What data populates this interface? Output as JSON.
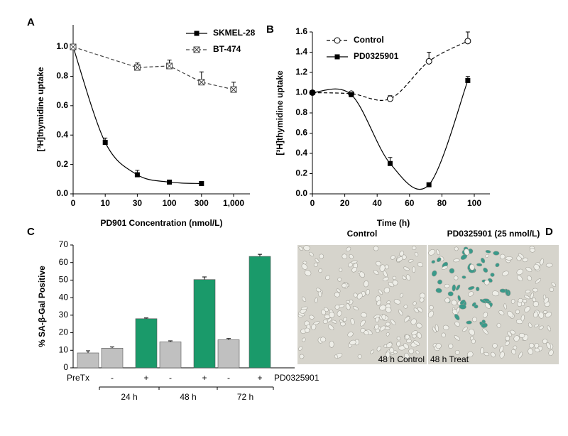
{
  "chart_data": [
    {
      "type": "line",
      "panel_label": "A",
      "x_label": "PD901 Concentration (nmol/L)",
      "y_label": "[³H]thymidine uptake",
      "categories": [
        "0",
        "10",
        "30",
        "100",
        "300",
        "1,000"
      ],
      "ylim": [
        0,
        1.15
      ],
      "yticks": [
        {
          "value": 0,
          "label": "0.0"
        },
        0.2,
        0.4,
        0.6,
        0.8,
        {
          "value": 1,
          "label": "1.0"
        }
      ],
      "legend": "top-right",
      "series": [
        {
          "name": "SKMEL-28",
          "color": "#000000",
          "marker": "square",
          "dash": false,
          "smooth": true,
          "values": [
            1.0,
            0.35,
            0.13,
            0.08,
            0.07,
            null
          ],
          "errors": [
            0,
            0.03,
            0.03,
            0,
            0,
            null
          ]
        },
        {
          "name": "BT-474",
          "color": "#444444",
          "marker": "crossed-square",
          "dash": true,
          "smooth": false,
          "values": [
            1.0,
            null,
            0.86,
            0.87,
            0.76,
            0.71
          ],
          "errors": [
            0,
            null,
            0.03,
            0.04,
            0.07,
            0.05
          ]
        }
      ]
    },
    {
      "type": "line",
      "panel_label": "B",
      "x_label": "Time (h)",
      "y_label": "[³H]thymidine uptake",
      "xlim": [
        0,
        100
      ],
      "xticks": [
        0,
        20,
        40,
        60,
        80,
        100
      ],
      "ylim": [
        0,
        1.6
      ],
      "yticks": [
        {
          "value": 0,
          "label": "0.0"
        },
        0.2,
        0.4,
        0.6,
        0.8,
        {
          "value": 1,
          "label": "1.0"
        },
        1.2,
        1.4,
        1.6
      ],
      "legend": "top-left",
      "series": [
        {
          "name": "Control",
          "color": "#000000",
          "marker": "circle",
          "dash": true,
          "smooth": true,
          "x": [
            0,
            24,
            48,
            72,
            96
          ],
          "values": [
            1.0,
            0.99,
            0.94,
            1.31,
            1.51
          ],
          "errors": [
            0,
            0.01,
            0.03,
            0.09,
            0.09
          ]
        },
        {
          "name": "PD0325901",
          "color": "#000000",
          "marker": "square",
          "dash": false,
          "smooth": true,
          "x": [
            0,
            24,
            48,
            72,
            96
          ],
          "values": [
            1.0,
            0.98,
            0.3,
            0.09,
            1.12
          ],
          "errors": [
            0,
            0.01,
            0.06,
            0,
            0.04
          ]
        }
      ]
    },
    {
      "type": "bar",
      "panel_label": "C",
      "y_label": "% SA-β-Gal Positive",
      "categories": [
        "PreTx",
        "-",
        "+",
        "-",
        "+",
        "-",
        "+"
      ],
      "values": [
        8.5,
        11.2,
        28,
        14.8,
        50.3,
        16,
        63.5
      ],
      "errors": [
        1.2,
        0.7,
        0.4,
        0.6,
        1.5,
        0.7,
        1.2
      ],
      "colors": [
        "#c0c0c0",
        "#c0c0c0",
        "#1a9a6a",
        "#c0c0c0",
        "#1a9a6a",
        "#c0c0c0",
        "#1a9a6a"
      ],
      "group_labels": [
        "24 h",
        "48 h",
        "72 h"
      ],
      "row_label": "PD0325901",
      "ylim": [
        0,
        70
      ],
      "yticks": [
        0,
        10,
        20,
        30,
        40,
        50,
        60,
        70
      ]
    }
  ],
  "images": {
    "panel_label": "D",
    "items": [
      {
        "title": "Control",
        "caption": "48 h Control"
      },
      {
        "title": "PD0325901 (25 nmol/L)",
        "caption": "48 h Treat"
      }
    ]
  }
}
